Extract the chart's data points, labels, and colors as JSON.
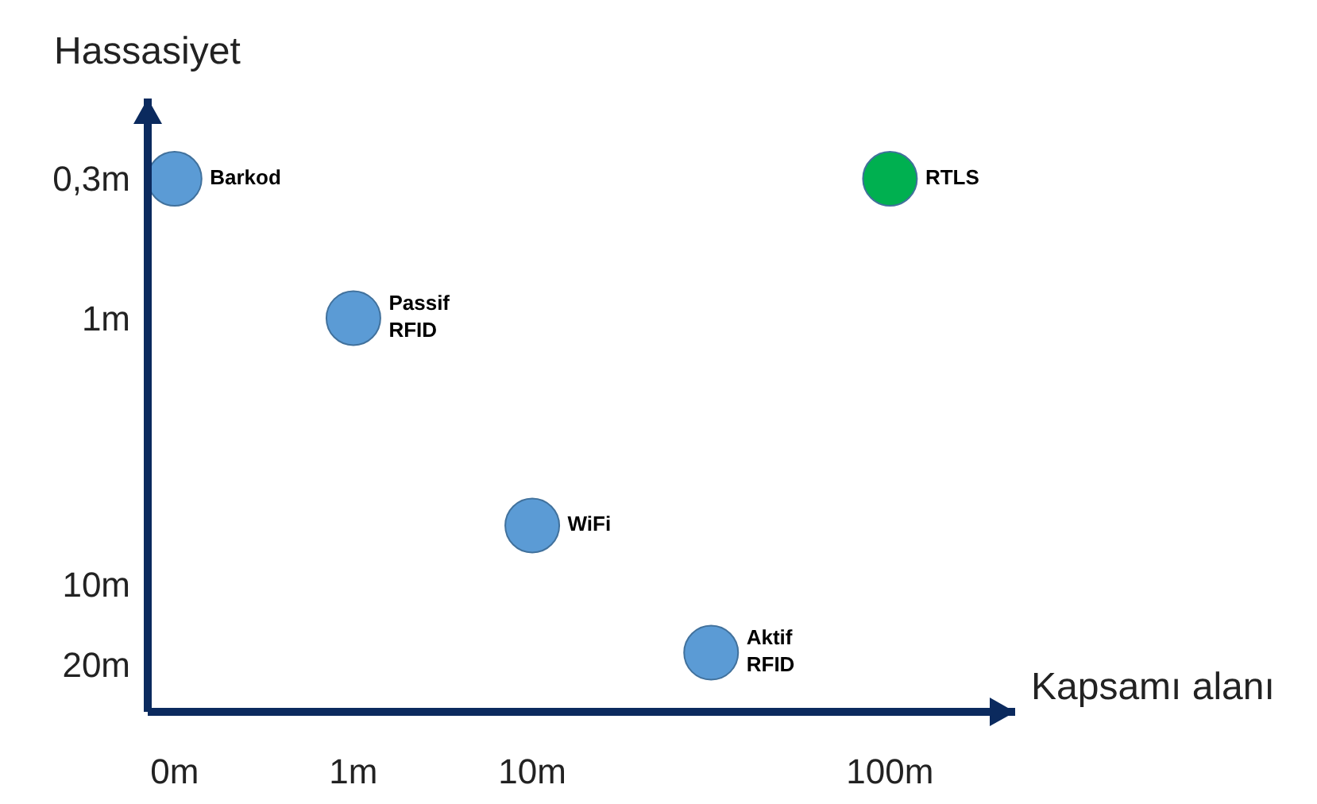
{
  "chart_data": {
    "type": "scatter",
    "xlabel": "Kapsamı alanı",
    "ylabel": "Hassasiyet",
    "categories": [
      "0m",
      "1m",
      "10m",
      null,
      "100m"
    ],
    "series": [
      {
        "name": "Barkod",
        "color": "#5b9bd5",
        "values": [
          0.3,
          null,
          null,
          null,
          null
        ]
      },
      {
        "name": "Passif\nRFID",
        "color": "#5b9bd5",
        "values": [
          null,
          1,
          null,
          null,
          null
        ]
      },
      {
        "name": "WiFi",
        "color": "#5b9bd5",
        "values": [
          null,
          null,
          6,
          null,
          null
        ]
      },
      {
        "name": "Aktif\nRFID",
        "color": "#5b9bd5",
        "values": [
          null,
          null,
          null,
          18,
          null
        ]
      },
      {
        "name": "RTLS",
        "color": "#00b050",
        "values": [
          null,
          null,
          null,
          null,
          0.3
        ]
      }
    ],
    "marker": "circle",
    "log": "y",
    "ylim": [
      30,
      0.15
    ],
    "yticks": [
      {
        "value": 20,
        "label": "20m"
      },
      {
        "value": 10,
        "label": "10m"
      },
      {
        "value": 1,
        "label": "1m"
      },
      {
        "value": 0.3,
        "label": "0,3m"
      }
    ],
    "grid": false
  }
}
